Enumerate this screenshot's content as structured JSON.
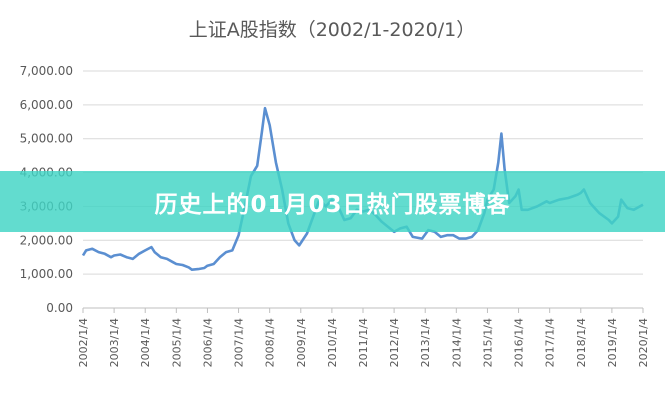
{
  "chart_data": {
    "type": "line",
    "title": "上证A股指数（2002/1-2020/1）",
    "xlabel": "",
    "ylabel": "",
    "ylim": [
      0,
      7000
    ],
    "y_ticks": [
      "0.00",
      "1,000.00",
      "2,000.00",
      "3,000.00",
      "4,000.00",
      "5,000.00",
      "6,000.00",
      "7,000.00"
    ],
    "x_ticks": [
      "2002/1/4",
      "2003/1/4",
      "2004/1/4",
      "2005/1/4",
      "2006/1/4",
      "2007/1/4",
      "2008/1/4",
      "2009/1/4",
      "2010/1/4",
      "2011/1/4",
      "2012/1/4",
      "2013/1/4",
      "2014/1/4",
      "2015/1/4",
      "2016/1/4",
      "2017/1/4",
      "2018/1/4",
      "2019/1/4",
      "2020/1/4"
    ],
    "grid": true,
    "line_color": "#5b8fd1",
    "series": [
      {
        "name": "",
        "x": [
          2002.0,
          2002.1,
          2002.3,
          2002.5,
          2002.7,
          2002.9,
          2003.0,
          2003.2,
          2003.4,
          2003.6,
          2003.8,
          2004.0,
          2004.2,
          2004.3,
          2004.5,
          2004.7,
          2004.9,
          2005.0,
          2005.2,
          2005.4,
          2005.5,
          2005.7,
          2005.9,
          2006.0,
          2006.2,
          2006.4,
          2006.6,
          2006.8,
          2007.0,
          2007.2,
          2007.4,
          2007.6,
          2007.75,
          2007.85,
          2008.0,
          2008.2,
          2008.4,
          2008.6,
          2008.8,
          2008.95,
          2009.2,
          2009.4,
          2009.6,
          2009.8,
          2010.0,
          2010.2,
          2010.4,
          2010.6,
          2010.8,
          2011.0,
          2011.2,
          2011.4,
          2011.6,
          2011.8,
          2012.0,
          2012.2,
          2012.4,
          2012.6,
          2012.9,
          2013.1,
          2013.3,
          2013.5,
          2013.7,
          2013.9,
          2014.1,
          2014.3,
          2014.5,
          2014.7,
          2014.9,
          2015.0,
          2015.2,
          2015.35,
          2015.45,
          2015.55,
          2015.7,
          2015.9,
          2016.0,
          2016.1,
          2016.3,
          2016.6,
          2016.9,
          2017.0,
          2017.3,
          2017.6,
          2017.9,
          2018.0,
          2018.1,
          2018.3,
          2018.6,
          2018.9,
          2019.0,
          2019.2,
          2019.3,
          2019.5,
          2019.7,
          2019.9,
          2020.0
        ],
        "values": [
          1550,
          1700,
          1750,
          1650,
          1600,
          1500,
          1550,
          1580,
          1500,
          1450,
          1600,
          1700,
          1800,
          1650,
          1500,
          1450,
          1350,
          1300,
          1270,
          1200,
          1130,
          1150,
          1180,
          1250,
          1300,
          1500,
          1650,
          1700,
          2150,
          3000,
          3900,
          4200,
          5200,
          5900,
          5400,
          4300,
          3500,
          2500,
          2000,
          1850,
          2200,
          2700,
          3200,
          3000,
          3200,
          3000,
          2600,
          2650,
          2900,
          2850,
          2900,
          2750,
          2550,
          2400,
          2250,
          2350,
          2400,
          2100,
          2050,
          2300,
          2250,
          2100,
          2150,
          2150,
          2050,
          2050,
          2100,
          2300,
          2800,
          3200,
          3500,
          4300,
          5150,
          4100,
          3100,
          3300,
          3500,
          2900,
          2900,
          3000,
          3150,
          3100,
          3200,
          3250,
          3350,
          3400,
          3500,
          3100,
          2800,
          2600,
          2500,
          2700,
          3200,
          2950,
          2900,
          3000,
          3050
        ]
      }
    ]
  },
  "banner": {
    "text": "历史上的01月03日热门股票博客"
  }
}
